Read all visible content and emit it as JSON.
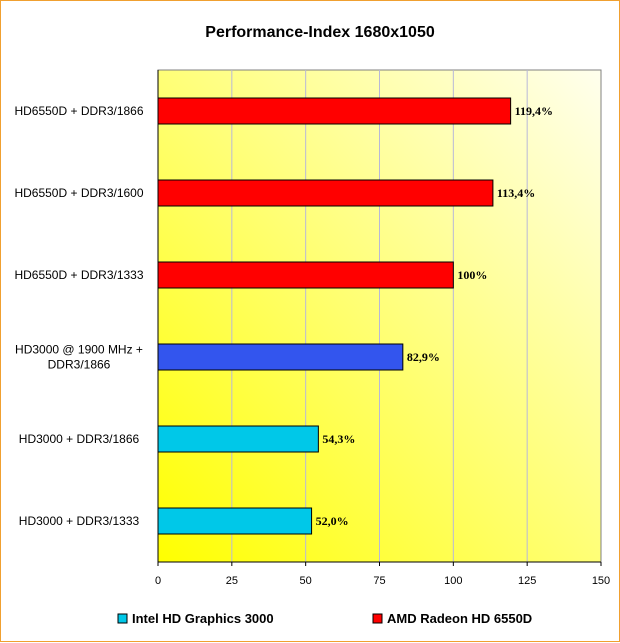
{
  "chart_data": {
    "type": "bar",
    "orientation": "horizontal",
    "title": "Performance-Index 1680x1050",
    "xlabel": "",
    "ylabel": "",
    "xlim": [
      0,
      150
    ],
    "ticks": [
      0,
      25,
      50,
      75,
      100,
      125,
      150
    ],
    "grid": true,
    "legend_position": "bottom",
    "categories": [
      [
        "HD6550D + DDR3/1866"
      ],
      [
        "HD6550D + DDR3/1600"
      ],
      [
        "HD6550D + DDR3/1333"
      ],
      [
        "HD3000 @ 1900 MHz +",
        "DDR3/1866"
      ],
      [
        "HD3000 + DDR3/1866"
      ],
      [
        "HD3000 + DDR3/1333"
      ]
    ],
    "values": [
      119.4,
      113.4,
      100,
      82.9,
      54.3,
      52.0
    ],
    "value_labels": [
      "119,4%",
      "113,4%",
      "100%",
      "82,9%",
      "54,3%",
      "52,0%"
    ],
    "bar_colors": [
      "#ff0000",
      "#ff0000",
      "#ff0000",
      "#3355ee",
      "#00c8e8",
      "#00c8e8"
    ],
    "series": [
      {
        "name": "Intel HD Graphics 3000",
        "color": "#00c8e8"
      },
      {
        "name": "AMD Radeon HD 6550D",
        "color": "#ff0000"
      }
    ]
  }
}
